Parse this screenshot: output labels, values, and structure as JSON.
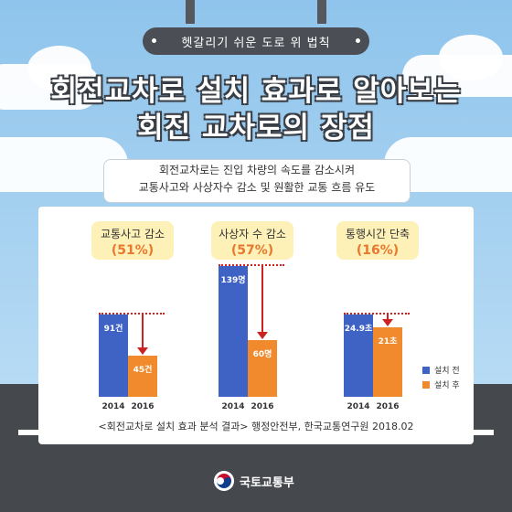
{
  "header": {
    "subtitle": "헷갈리기 쉬운 도로 위 법칙",
    "title_line1": "회전교차로 설치 효과로 알아보는",
    "title_line2": "회전 교차로의 장점"
  },
  "description": {
    "line1": "회전교차로는 진입 차량의 속도를 감소시켜",
    "line2": "교통사고와 사상자수 감소 및 원활한 교통 흐름 유도"
  },
  "colors": {
    "before": "#3f63c4",
    "after": "#f08a2c",
    "reference": "#cc2222",
    "badge": "#fdf1b8"
  },
  "chart_data": {
    "type": "bar",
    "categories": [
      "2014",
      "2016"
    ],
    "legend": [
      "설치 전",
      "설치 후"
    ],
    "groups": [
      {
        "title": "교통사고 감소",
        "change": "(51%)",
        "values": [
          91,
          45
        ],
        "labels": [
          "91건",
          "45건"
        ],
        "years": [
          "2014",
          "2016"
        ]
      },
      {
        "title": "사상자 수 감소",
        "change": "(57%)",
        "values": [
          139,
          60
        ],
        "labels": [
          "139명",
          "60명"
        ],
        "years": [
          "2014",
          "2016"
        ]
      },
      {
        "title": "통행시간 단축",
        "change": "(16%)",
        "values": [
          24.9,
          21
        ],
        "labels": [
          "24.9초",
          "21초"
        ],
        "years": [
          "2014",
          "2016"
        ]
      }
    ]
  },
  "source": "<회전교차로 설치 효과 분석 결과> 행정안전부, 한국교통연구원 2018.02",
  "logo": {
    "text": "국토교통부"
  }
}
